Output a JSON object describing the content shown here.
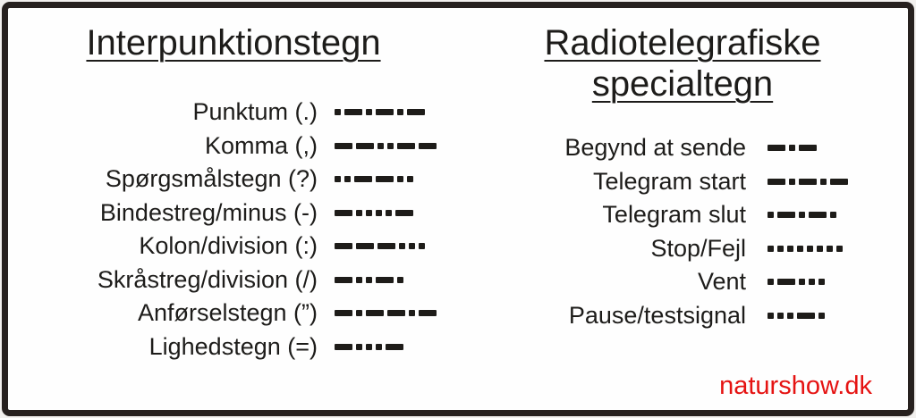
{
  "left_panel": {
    "title": "Interpunktionstegn",
    "rows": [
      {
        "label": "Punktum (.)",
        "morse": ".-.-.-"
      },
      {
        "label": "Komma (,)",
        "morse": "--..--"
      },
      {
        "label": "Spørgsmålstegn (?)",
        "morse": "..--.."
      },
      {
        "label": "Bindestreg/minus (-)",
        "morse": "-....-"
      },
      {
        "label": "Kolon/division (:)",
        "morse": "---..."
      },
      {
        "label": "Skråstreg/division (/)",
        "morse": "-..-."
      },
      {
        "label": "Anførselstegn (”)",
        "morse": "-.--.-"
      },
      {
        "label": "Lighedstegn (=)",
        "morse": "-...-"
      }
    ]
  },
  "right_panel": {
    "title_line1": "Radiotelegrafiske",
    "title_line2": "specialtegn",
    "rows": [
      {
        "label": "Begynd at sende",
        "morse": "-.-"
      },
      {
        "label": "Telegram start",
        "morse": "-.-.-"
      },
      {
        "label": "Telegram slut",
        "morse": ".-.-."
      },
      {
        "label": "Stop/Fejl",
        "morse": "........"
      },
      {
        "label": "Vent",
        "morse": ".-..."
      },
      {
        "label": "Pause/testsignal",
        "morse": "...-."
      }
    ]
  },
  "footer": {
    "watermark": "naturshow.dk",
    "watermark_color": "#e51312"
  },
  "colors": {
    "ink": "#1d1c1a",
    "morse": "#1e1c19",
    "border": "#27211f",
    "background": "#fefefe"
  }
}
